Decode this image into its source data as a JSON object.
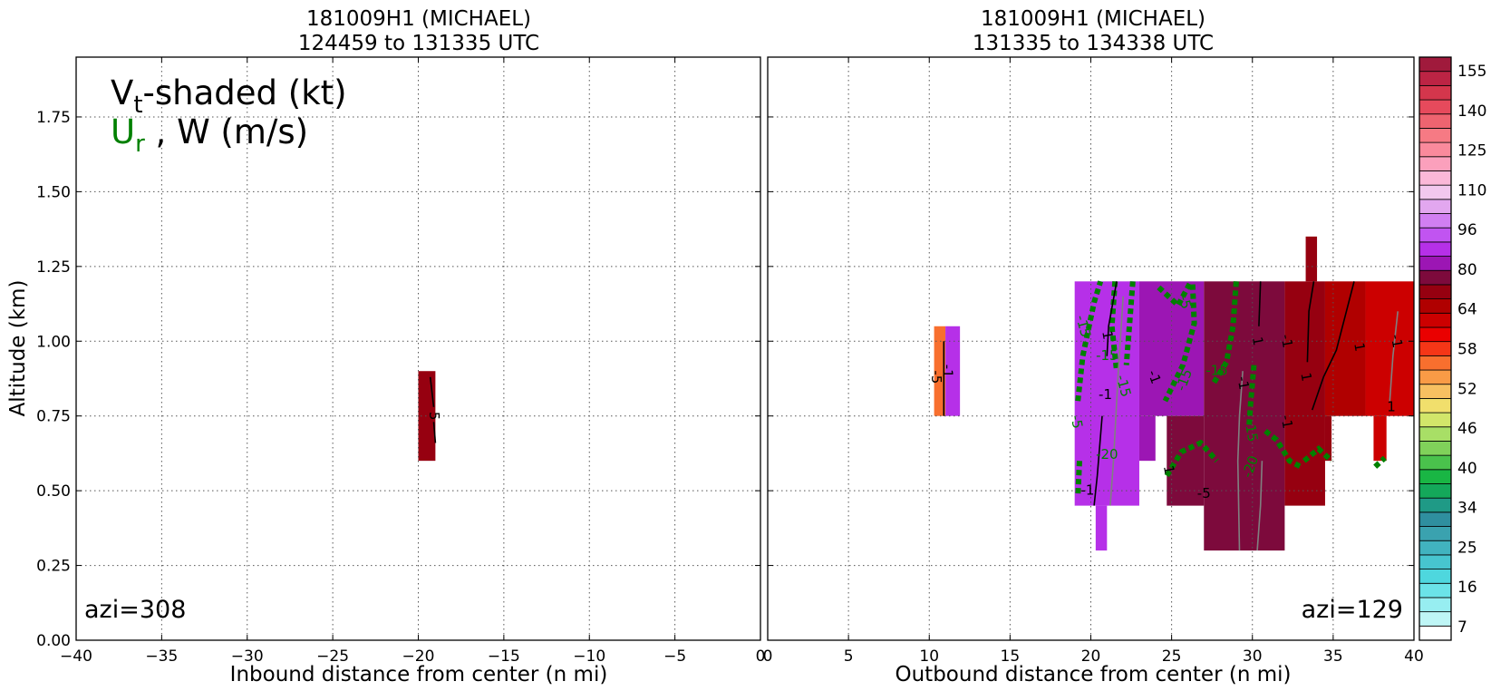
{
  "chart_data": [
    {
      "type": "heatmap",
      "title_line1": "181009H1 (MICHAEL)",
      "title_line2": "124459 to 131335 UTC",
      "xlabel": "Inbound distance from center (n mi)",
      "ylabel": "Altitude (km)",
      "xlim": [
        -40,
        0
      ],
      "ylim": [
        0,
        1.95
      ],
      "xticks": [
        -40,
        -35,
        -30,
        -25,
        -20,
        -15,
        -10,
        -5,
        0
      ],
      "xtick_labels": [
        "−40",
        "−35",
        "−30",
        "−25",
        "−20",
        "−15",
        "−10",
        "−5",
        "0"
      ],
      "yticks": [
        0,
        0.25,
        0.5,
        0.75,
        1.0,
        1.25,
        1.5,
        1.75
      ],
      "ytick_labels": [
        "0.00",
        "0.25",
        "0.50",
        "0.75",
        "1.00",
        "1.25",
        "1.50",
        "1.75"
      ],
      "grid": true,
      "legend_title": "V",
      "legend_title_sub": "t",
      "legend_title_rest": "-shaded (kt)",
      "legend_line2_main": "U",
      "legend_line2_sub": "r",
      "legend_line2_rest": " , W (m/s)",
      "legend_line2_color": "#008000",
      "azimuth_label": "azi=308",
      "cells": [
        {
          "x": [
            -20,
            -19
          ],
          "y": [
            0.6,
            0.9
          ],
          "value": 82
        }
      ],
      "contours": [
        {
          "field": "W",
          "points": [
            [
              -19.3,
              0.88
            ],
            [
              -19.1,
              0.78
            ]
          ],
          "color": "#000000"
        },
        {
          "field": "W",
          "points": [
            [
              -19.1,
              0.73
            ],
            [
              -19.0,
              0.66
            ]
          ],
          "color": "#000000"
        }
      ],
      "contour_labels": [
        {
          "text": "5",
          "x": -19.1,
          "y": 0.75,
          "color": "#000000",
          "rotate": 90
        }
      ]
    },
    {
      "type": "heatmap",
      "title_line1": "181009H1 (MICHAEL)",
      "title_line2": "131335 to 134338 UTC",
      "xlabel": "Outbound distance from center (n mi)",
      "xlim": [
        0,
        40
      ],
      "ylim": [
        0,
        1.95
      ],
      "xticks": [
        0,
        5,
        10,
        15,
        20,
        25,
        30,
        35,
        40
      ],
      "xtick_labels": [
        "0",
        "5",
        "10",
        "15",
        "20",
        "25",
        "30",
        "35",
        "40"
      ],
      "grid": true,
      "azimuth_label": "azi=129",
      "cells": [
        {
          "x": [
            10.3,
            11.0
          ],
          "y": [
            0.75,
            1.05
          ],
          "value": 60
        },
        {
          "x": [
            11.0,
            11.9
          ],
          "y": [
            0.75,
            1.05
          ],
          "value": 98
        },
        {
          "x": [
            19,
            23
          ],
          "y": [
            0.45,
            1.2
          ],
          "value": 96
        },
        {
          "x": [
            20.3,
            21.0
          ],
          "y": [
            0.3,
            0.45
          ],
          "value": 96
        },
        {
          "x": [
            23,
            27
          ],
          "y": [
            0.75,
            1.2
          ],
          "value": 90
        },
        {
          "x": [
            24.7,
            27
          ],
          "y": [
            0.45,
            0.75
          ],
          "value": 84
        },
        {
          "x": [
            23,
            24
          ],
          "y": [
            0.6,
            0.75
          ],
          "value": 90
        },
        {
          "x": [
            27,
            32
          ],
          "y": [
            0.3,
            1.2
          ],
          "value": 84
        },
        {
          "x": [
            32,
            34.5
          ],
          "y": [
            0.45,
            1.2
          ],
          "value": 80
        },
        {
          "x": [
            33.3,
            34.0
          ],
          "y": [
            1.2,
            1.35
          ],
          "value": 80
        },
        {
          "x": [
            34.5,
            37
          ],
          "y": [
            0.75,
            1.2
          ],
          "value": 76
        },
        {
          "x": [
            37,
            40
          ],
          "y": [
            0.75,
            1.2
          ],
          "value": 70
        },
        {
          "x": [
            37.5,
            38.3
          ],
          "y": [
            0.6,
            0.75
          ],
          "value": 70
        },
        {
          "x": [
            34.5,
            34.9
          ],
          "y": [
            0.6,
            0.75
          ],
          "value": 80
        }
      ],
      "contours": [
        {
          "field": "Ur",
          "points": [
            [
              19.2,
              0.8
            ],
            [
              19.5,
              0.95
            ],
            [
              20.2,
              1.13
            ],
            [
              20.6,
              1.2
            ]
          ],
          "color": "#008000",
          "dashed": true
        },
        {
          "field": "Ur",
          "points": [
            [
              21.5,
              1.2
            ],
            [
              21.3,
              1.05
            ],
            [
              21.6,
              0.9
            ]
          ],
          "color": "#008000",
          "dashed": true
        },
        {
          "field": "Ur",
          "points": [
            [
              22.6,
              1.2
            ],
            [
              22.4,
              1.06
            ],
            [
              22.2,
              0.92
            ]
          ],
          "color": "#008000",
          "dashed": true
        },
        {
          "field": "Ur",
          "points": [
            [
              24.2,
              1.18
            ],
            [
              25.4,
              1.12
            ],
            [
              26.2,
              1.2
            ]
          ],
          "color": "#008000",
          "dashed": true
        },
        {
          "field": "Ur",
          "points": [
            [
              26.3,
              1.19
            ],
            [
              26.4,
              1.06
            ],
            [
              25.7,
              0.92
            ],
            [
              24.6,
              0.8
            ]
          ],
          "color": "#008000",
          "dashed": true
        },
        {
          "field": "Ur",
          "points": [
            [
              29,
              1.2
            ],
            [
              28.8,
              1.05
            ],
            [
              28.4,
              0.93
            ],
            [
              27.6,
              0.86
            ]
          ],
          "color": "#008000",
          "dashed": true
        },
        {
          "field": "Ur",
          "points": [
            [
              30.1,
              0.92
            ],
            [
              29.9,
              0.8
            ],
            [
              29.8,
              0.72
            ]
          ],
          "color": "#008000",
          "dashed": true
        },
        {
          "field": "Ur",
          "points": [
            [
              24.7,
              0.55
            ],
            [
              25.6,
              0.63
            ],
            [
              26.8,
              0.66
            ],
            [
              27.8,
              0.6
            ]
          ],
          "color": "#008000",
          "dashed": true
        },
        {
          "field": "Ur",
          "points": [
            [
              30.8,
              0.7
            ],
            [
              31.5,
              0.67
            ],
            [
              32.3,
              0.6
            ],
            [
              33.0,
              0.58
            ]
          ],
          "color": "#008000",
          "dashed": true
        },
        {
          "field": "Ur",
          "points": [
            [
              33.2,
              0.6
            ],
            [
              34.1,
              0.64
            ],
            [
              34.9,
              0.6
            ]
          ],
          "color": "#008000",
          "dashed": true
        },
        {
          "field": "Ur",
          "points": [
            [
              37.6,
              0.58
            ],
            [
              38.2,
              0.61
            ]
          ],
          "color": "#008000",
          "dashed": true
        },
        {
          "field": "Ur",
          "points": [
            [
              19.3,
              0.6
            ],
            [
              19.2,
              0.48
            ]
          ],
          "color": "#008000",
          "dashed": true
        },
        {
          "field": "W",
          "points": [
            [
              21.6,
              1.2
            ],
            [
              21.1,
              1.05
            ],
            [
              21.0,
              0.95
            ]
          ],
          "color": "#000000"
        },
        {
          "field": "W",
          "points": [
            [
              20.7,
              0.75
            ],
            [
              20.4,
              0.55
            ],
            [
              20.2,
              0.45
            ]
          ],
          "color": "#000000"
        },
        {
          "field": "W",
          "points": [
            [
              30.5,
              1.2
            ],
            [
              30.4,
              1.05
            ]
          ],
          "color": "#000000"
        },
        {
          "field": "W",
          "points": [
            [
              33.8,
              1.2
            ],
            [
              33.5,
              1.1
            ],
            [
              33.4,
              0.93
            ]
          ],
          "color": "#000000"
        },
        {
          "field": "W",
          "points": [
            [
              36.3,
              1.2
            ],
            [
              35.2,
              0.97
            ],
            [
              34.4,
              0.88
            ],
            [
              33.7,
              0.77
            ]
          ],
          "color": "#000000"
        },
        {
          "field": "W",
          "points": [
            [
              10.9,
              1.0
            ],
            [
              10.9,
              0.75
            ]
          ],
          "color": "#000000"
        },
        {
          "field": "W",
          "points": [
            [
              29.4,
              0.9
            ],
            [
              29.2,
              0.75
            ],
            [
              29.1,
              0.6
            ],
            [
              29.2,
              0.3
            ]
          ],
          "color": "#808080"
        },
        {
          "field": "W",
          "points": [
            [
              22.0,
              1.15
            ],
            [
              21.7,
              0.9
            ],
            [
              21.4,
              0.6
            ],
            [
              21.2,
              0.45
            ]
          ],
          "color": "#808080"
        },
        {
          "field": "W",
          "points": [
            [
              30.6,
              0.6
            ],
            [
              30.5,
              0.45
            ],
            [
              30.3,
              0.3
            ]
          ],
          "color": "#808080"
        },
        {
          "field": "W",
          "points": [
            [
              39.0,
              1.1
            ],
            [
              38.7,
              0.95
            ],
            [
              38.5,
              0.8
            ]
          ],
          "color": "#808080"
        }
      ],
      "contour_labels": [
        {
          "text": "-15",
          "x": 19.5,
          "y": 1.05,
          "color": "#008000",
          "rotate": 75
        },
        {
          "text": "-15",
          "x": 21.0,
          "y": 0.95,
          "color": "#008000",
          "rotate": 0
        },
        {
          "text": "-15",
          "x": 22.0,
          "y": 0.85,
          "color": "#008000",
          "rotate": 75
        },
        {
          "text": "-15",
          "x": 25.8,
          "y": 0.87,
          "color": "#008000",
          "rotate": -70
        },
        {
          "text": "-15",
          "x": 27.8,
          "y": 0.9,
          "color": "#008000",
          "rotate": 0
        },
        {
          "text": "-15",
          "x": 29.9,
          "y": 0.7,
          "color": "#008000",
          "rotate": 80
        },
        {
          "text": "-20",
          "x": 21.0,
          "y": 0.62,
          "color": "#008000",
          "rotate": 0
        },
        {
          "text": "-20",
          "x": 29.9,
          "y": 0.58,
          "color": "#008000",
          "rotate": -70
        },
        {
          "text": "-5",
          "x": 25.8,
          "y": 1.13,
          "color": "#008000",
          "rotate": 75
        },
        {
          "text": "-5",
          "x": 19.1,
          "y": 0.73,
          "color": "#008000",
          "rotate": 80
        },
        {
          "text": "-1",
          "x": 20.9,
          "y": 0.82,
          "color": "#000000",
          "rotate": 0
        },
        {
          "text": "-1",
          "x": 19.8,
          "y": 0.5,
          "color": "#000000",
          "rotate": 0
        },
        {
          "text": "-1",
          "x": 23.9,
          "y": 0.88,
          "color": "#000000",
          "rotate": 70
        },
        {
          "text": "-1",
          "x": 29.4,
          "y": 0.86,
          "color": "#000000",
          "rotate": 80
        },
        {
          "text": "-1",
          "x": 32.1,
          "y": 1.0,
          "color": "#000000",
          "rotate": 80
        },
        {
          "text": "-1",
          "x": 32.1,
          "y": 0.73,
          "color": "#000000",
          "rotate": 80
        },
        {
          "text": "1",
          "x": 21.0,
          "y": 1.02,
          "color": "#000000",
          "rotate": 80
        },
        {
          "text": "1",
          "x": 30.3,
          "y": 1.0,
          "color": "#000000",
          "rotate": 80
        },
        {
          "text": "1",
          "x": 33.3,
          "y": 0.88,
          "color": "#000000",
          "rotate": 80
        },
        {
          "text": "1",
          "x": 36.6,
          "y": 0.98,
          "color": "#000000",
          "rotate": 80
        },
        {
          "text": "1",
          "x": 38.6,
          "y": 0.78,
          "color": "#000000",
          "rotate": 0
        },
        {
          "text": "-1",
          "x": 38.9,
          "y": 1.0,
          "color": "#000000",
          "rotate": 80
        },
        {
          "text": "1",
          "x": 24.8,
          "y": 0.57,
          "color": "#000000",
          "rotate": 80
        },
        {
          "text": "-5",
          "x": 27.0,
          "y": 0.49,
          "color": "#000000",
          "rotate": 0
        },
        {
          "text": "-5",
          "x": 10.4,
          "y": 0.88,
          "color": "#000000",
          "rotate": 90
        },
        {
          "text": "-1",
          "x": 11.1,
          "y": 0.9,
          "color": "#000000",
          "rotate": 90
        }
      ]
    },
    {
      "type": "colorbar",
      "tick_labels": [
        "155",
        "140",
        "125",
        "110",
        "96",
        "80",
        "64",
        "58",
        "52",
        "46",
        "40",
        "34",
        "25",
        "16",
        "7"
      ],
      "levels": [
        0,
        7,
        10,
        13,
        16,
        19,
        22,
        25,
        28,
        31,
        34,
        37,
        40,
        43,
        46,
        49,
        52,
        55,
        58,
        61,
        64,
        70,
        76,
        80,
        84,
        88,
        96,
        100,
        105,
        110,
        115,
        120,
        125,
        130,
        135,
        140,
        145,
        150,
        155,
        160
      ],
      "colors": [
        "#ffffff",
        "#bff6f6",
        "#97eef1",
        "#6be3e8",
        "#4ed7de",
        "#47c5cf",
        "#41b3bf",
        "#3aa2af",
        "#2f8f9f",
        "#1f9a86",
        "#14a85a",
        "#19b644",
        "#4ac24c",
        "#80d15a",
        "#a8df66",
        "#d2e66a",
        "#f1df6c",
        "#f7c061",
        "#f99b46",
        "#f86f2e",
        "#f53617",
        "#ea0000",
        "#cc0000",
        "#b00000",
        "#960010",
        "#7d0a3c",
        "#9c16b4",
        "#b630e8",
        "#c154f1",
        "#d17ff2",
        "#e2a7ef",
        "#f2c8ee",
        "#fbb8d8",
        "#fba0bc",
        "#fa8a9c",
        "#f67a84",
        "#ee6470",
        "#e64a5c",
        "#d4364c",
        "#bc2444",
        "#a01a3c"
      ]
    }
  ]
}
